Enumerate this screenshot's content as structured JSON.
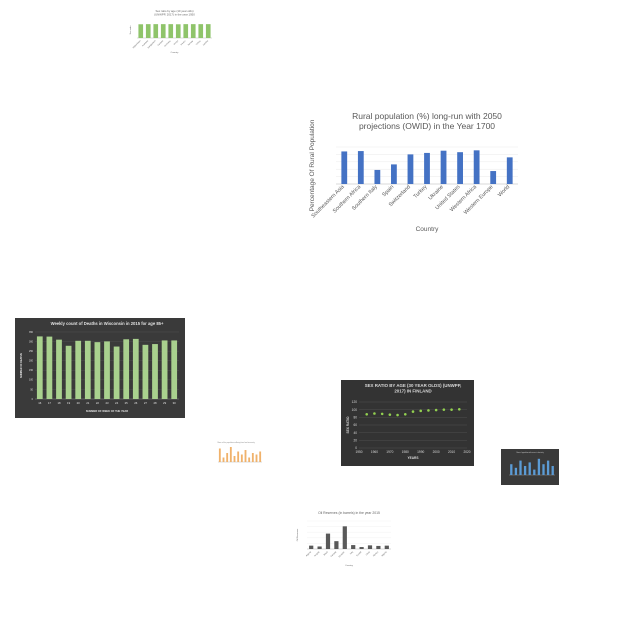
{
  "chart_data": [
    {
      "id": "c1",
      "type": "bar",
      "title": "Sex ratio by age (10 year olds) (UNWPP, 2017) in the year 1950",
      "xlabel": "Country",
      "ylabel": "Sex ratio",
      "categories": [
        "Afghanistan",
        "Australia",
        "Bangladesh",
        "Canada",
        "Germany",
        "Kenya",
        "Mexico",
        "Norway",
        "Turkey",
        "Zambia"
      ],
      "values": [
        103,
        104,
        104,
        104,
        104,
        103,
        104,
        104,
        104,
        104
      ],
      "ylim": [
        0,
        120
      ],
      "colors": {
        "bar": "#8fc46a",
        "bg": "#ffffff",
        "text": "#666666"
      }
    },
    {
      "id": "c2",
      "type": "bar",
      "title": "Rural population (%) long-run with 2050 projections (OWID) in the Year 1700",
      "xlabel": "Country",
      "ylabel": "Percentage Of Rural Population",
      "categories": [
        "Southeastern Asia",
        "Southern Africa",
        "Southern Italy",
        "Spain",
        "Switzerland",
        "Turkey",
        "Ukraine",
        "United States",
        "Western Africa",
        "Western Europe",
        "World"
      ],
      "values": [
        88,
        89,
        38,
        53,
        80,
        84,
        90,
        86,
        91,
        35,
        72
      ],
      "ylim": [
        0,
        100
      ],
      "colors": {
        "bar": "#4472c4",
        "bg": "#ffffff",
        "text": "#595959"
      }
    },
    {
      "id": "c3",
      "type": "bar",
      "title": "Weekly count of Deaths in Wisconsin in 2015 for age 85+",
      "xlabel": "NUMBER OF WEEK OF THE YEAR",
      "ylabel": "NUMBER OF DEATHS",
      "categories": [
        "16",
        "17",
        "18",
        "19",
        "20",
        "21",
        "22",
        "23",
        "24",
        "25",
        "26",
        "27",
        "28",
        "29",
        "30"
      ],
      "values": [
        327,
        326,
        310,
        278,
        304,
        304,
        297,
        301,
        274,
        312,
        314,
        283,
        287,
        306,
        306
      ],
      "yticks": [
        "0",
        "50",
        "100",
        "150",
        "200",
        "250",
        "300",
        "350"
      ],
      "ylim": [
        0,
        350
      ],
      "colors": {
        "bar": "#a9d18e",
        "bg": "#3a3a3a",
        "text": "#e0e0e0"
      }
    },
    {
      "id": "c4",
      "type": "bar",
      "title": "Share of the population suffering from food insecurity",
      "colors": {
        "bar": "#f0b26b",
        "bg": "#ffffff",
        "text": "#888888"
      }
    },
    {
      "id": "c5",
      "type": "scatter",
      "title": "SEX RATIO BY AGE (30 YEAR OLDS) (UNWPP, 2017) IN FINLAND",
      "xlabel": "YEARS",
      "ylabel": "SEX RATIO",
      "x": [
        1955,
        1960,
        1965,
        1970,
        1975,
        1980,
        1985,
        1990,
        1995,
        2000,
        2005,
        2010,
        2015
      ],
      "values": [
        88,
        90,
        89,
        87,
        86,
        88,
        95,
        97,
        98,
        99,
        100,
        100,
        101
      ],
      "xticks": [
        "1950",
        "1960",
        "1970",
        "1980",
        "1990",
        "2000",
        "2010",
        "2020"
      ],
      "yticks": [
        "0",
        "20",
        "40",
        "60",
        "80",
        "100",
        "120"
      ],
      "ylim": [
        0,
        120
      ],
      "colors": {
        "point": "#92d050",
        "bg": "#333333",
        "text": "#d9d9d9"
      }
    },
    {
      "id": "c6",
      "type": "bar",
      "title": "Share of population with access to electricity",
      "colors": {
        "bar": "#5b9bd5",
        "bg": "#3a3a3a",
        "text": "#cccccc"
      }
    },
    {
      "id": "c7",
      "type": "bar",
      "title": "Oil Reserves (in barrels) in the year 2015",
      "xlabel": "Country",
      "ylabel": "Oil Reserves",
      "categories": [
        "Algeria",
        "Angola",
        "Brazil",
        "Canada",
        "Ecuador",
        "Iraq",
        "Kuwait",
        "Libya",
        "Mexico",
        "Nigeria"
      ],
      "values": [
        12,
        9,
        55,
        28,
        81,
        14,
        7,
        13,
        11,
        12
      ],
      "ylim": [
        0,
        100
      ],
      "colors": {
        "bar": "#595959",
        "bg": "#ffffff",
        "text": "#666666"
      }
    }
  ]
}
